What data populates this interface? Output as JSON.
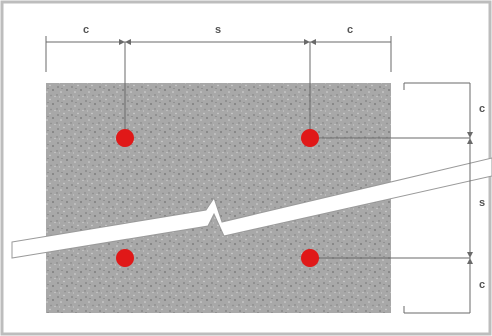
{
  "dimensions": {
    "top_left": "c",
    "top_middle": "s",
    "top_right": "c",
    "right_top": "c",
    "right_middle": "s",
    "right_bottom": "c"
  },
  "colors": {
    "frame": "#bdbdbd",
    "concrete": "#a8a8a8",
    "concrete_speckle_dark": "#7e7e7e",
    "concrete_speckle_light": "#d6d6d6",
    "anchor": "#e01818",
    "dimension_line": "#6a6a6a",
    "crack_gap": "#ffffff"
  },
  "anchors": {
    "count": 4,
    "icon": "anchor-dot"
  }
}
